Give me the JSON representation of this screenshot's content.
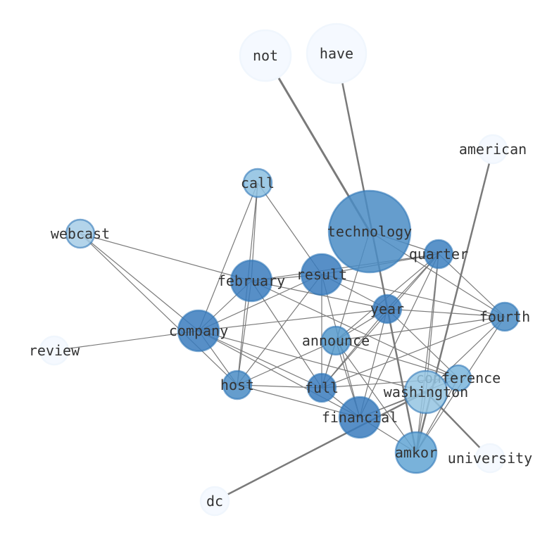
{
  "nodes": [
    {
      "id": "technology",
      "label": "technology",
      "color": "#4a8cc4",
      "alpha": 0.85
    },
    {
      "id": "not",
      "label": "not",
      "color": "#f5f9ff",
      "alpha": 1
    },
    {
      "id": "have",
      "label": "have",
      "color": "#f5f9ff",
      "alpha": 1
    },
    {
      "id": "american",
      "label": "american",
      "color": "#f5f9ff",
      "alpha": 1
    },
    {
      "id": "call",
      "label": "call",
      "color": "#8cc0e0",
      "alpha": 0.85
    },
    {
      "id": "webcast",
      "label": "webcast",
      "color": "#a6cde6",
      "alpha": 0.85
    },
    {
      "id": "quarter",
      "label": "quarter",
      "color": "#3d80bf",
      "alpha": 0.85
    },
    {
      "id": "result",
      "label": "result",
      "color": "#3a7bbd",
      "alpha": 0.85
    },
    {
      "id": "february",
      "label": "february",
      "color": "#3a7bbd",
      "alpha": 0.85
    },
    {
      "id": "year",
      "label": "year",
      "color": "#3a7bbd",
      "alpha": 0.85
    },
    {
      "id": "fourth",
      "label": "fourth",
      "color": "#4a8cc4",
      "alpha": 0.85
    },
    {
      "id": "company",
      "label": "company",
      "color": "#3a7bbd",
      "alpha": 0.85
    },
    {
      "id": "announce",
      "label": "announce",
      "color": "#5599cb",
      "alpha": 0.85
    },
    {
      "id": "review",
      "label": "review",
      "color": "#f5f9ff",
      "alpha": 1
    },
    {
      "id": "host",
      "label": "host",
      "color": "#4a8cc4",
      "alpha": 0.85
    },
    {
      "id": "full",
      "label": "full",
      "color": "#3a7bbd",
      "alpha": 0.85
    },
    {
      "id": "conference",
      "label": "conference",
      "color": "#7ab5dc",
      "alpha": 0.85
    },
    {
      "id": "washington",
      "label": "washington",
      "color": "#94c4e2",
      "alpha": 0.85
    },
    {
      "id": "financial",
      "label": "financial",
      "color": "#3a7bbd",
      "alpha": 0.85
    },
    {
      "id": "amkor",
      "label": "amkor",
      "color": "#62a5d3",
      "alpha": 0.85
    },
    {
      "id": "university",
      "label": "university",
      "color": "#f5f9ff",
      "alpha": 1
    },
    {
      "id": "dc",
      "label": "dc",
      "color": "#f5f9ff",
      "alpha": 1
    }
  ],
  "edges": [
    [
      "not",
      "technology",
      3
    ],
    [
      "have",
      "amkor",
      2.5
    ],
    [
      "american",
      "amkor",
      2.5
    ],
    [
      "dc",
      "washington",
      2.5
    ],
    [
      "university",
      "washington",
      2.5
    ],
    [
      "review",
      "company",
      1.2
    ],
    [
      "webcast",
      "february",
      1.2
    ],
    [
      "webcast",
      "company",
      1.2
    ],
    [
      "webcast",
      "host",
      1.2
    ],
    [
      "call",
      "february",
      1.2
    ],
    [
      "call",
      "company",
      1.2
    ],
    [
      "call",
      "host",
      1.2
    ],
    [
      "call",
      "result",
      1.2
    ],
    [
      "technology",
      "quarter",
      1.2
    ],
    [
      "technology",
      "full",
      1.2
    ],
    [
      "technology",
      "fourth",
      1.2
    ],
    [
      "february",
      "result",
      1.2
    ],
    [
      "february",
      "quarter",
      1.2
    ],
    [
      "february",
      "company",
      1.2
    ],
    [
      "february",
      "host",
      1.2
    ],
    [
      "february",
      "full",
      1.2
    ],
    [
      "february",
      "year",
      1.2
    ],
    [
      "february",
      "conference",
      1.2
    ],
    [
      "result",
      "quarter",
      1.2
    ],
    [
      "result",
      "year",
      1.2
    ],
    [
      "result",
      "fourth",
      1.2
    ],
    [
      "result",
      "full",
      1.2
    ],
    [
      "result",
      "financial",
      1.2
    ],
    [
      "result",
      "company",
      1.2
    ],
    [
      "result",
      "host",
      1.2
    ],
    [
      "company",
      "year",
      1.2
    ],
    [
      "company",
      "full",
      1.2
    ],
    [
      "company",
      "financial",
      1.2
    ],
    [
      "company",
      "host",
      1.2
    ],
    [
      "company",
      "washington",
      1.2
    ],
    [
      "quarter",
      "year",
      1.2
    ],
    [
      "quarter",
      "fourth",
      1.2
    ],
    [
      "quarter",
      "announce",
      1.2
    ],
    [
      "quarter",
      "full",
      1.2
    ],
    [
      "quarter",
      "financial",
      1.2
    ],
    [
      "quarter",
      "amkor",
      1.2
    ],
    [
      "quarter",
      "washington",
      1.2
    ],
    [
      "year",
      "fourth",
      1.2
    ],
    [
      "year",
      "full",
      1.2
    ],
    [
      "year",
      "financial",
      1.2
    ],
    [
      "year",
      "conference",
      1.2
    ],
    [
      "year",
      "announce",
      1.2
    ],
    [
      "fourth",
      "announce",
      1.2
    ],
    [
      "fourth",
      "full",
      1.2
    ],
    [
      "fourth",
      "washington",
      1.2
    ],
    [
      "fourth",
      "amkor",
      1.2
    ],
    [
      "announce",
      "full",
      1.2
    ],
    [
      "announce",
      "financial",
      1.2
    ],
    [
      "announce",
      "amkor",
      1.2
    ],
    [
      "announce",
      "host",
      1.2
    ],
    [
      "announce",
      "conference",
      1.2
    ],
    [
      "host",
      "full",
      1.2
    ],
    [
      "host",
      "financial",
      1.2
    ],
    [
      "full",
      "financial",
      1.2
    ],
    [
      "full",
      "conference",
      1.2
    ],
    [
      "financial",
      "conference",
      1.2
    ],
    [
      "financial",
      "amkor",
      1.2
    ],
    [
      "financial",
      "washington",
      1.2
    ],
    [
      "conference",
      "amkor",
      1.2
    ],
    [
      "washington",
      "amkor",
      1.2
    ]
  ]
}
